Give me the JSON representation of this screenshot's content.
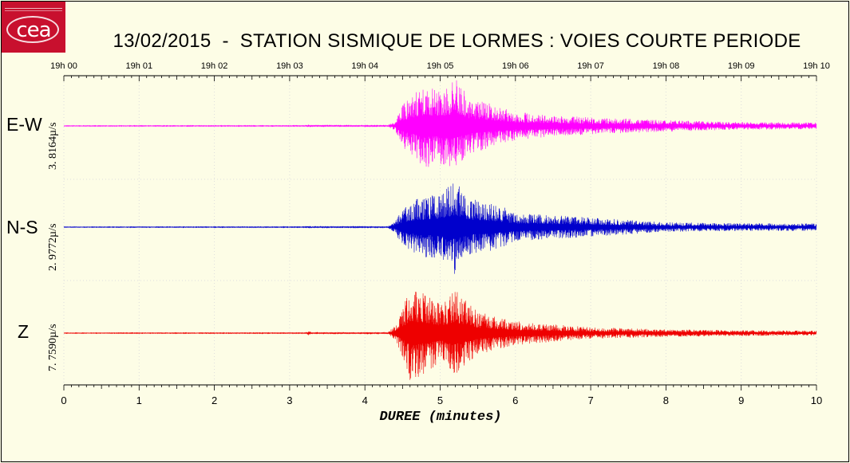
{
  "logo": {
    "text": "cea"
  },
  "title": "13/02/2015  -  STATION SISMIQUE DE LORMES : VOIES COURTE PERIODE",
  "chart_data": {
    "type": "line",
    "xlabel": "DUREE (minutes)",
    "xlim": [
      0,
      10
    ],
    "bottom_ticks": [
      "0",
      "1",
      "2",
      "3",
      "4",
      "5",
      "6",
      "7",
      "8",
      "9",
      "10"
    ],
    "top_ticks": [
      "19h 00",
      "19h 01",
      "19h 02",
      "19h 03",
      "19h 04",
      "19h 05",
      "19h 06",
      "19h 07",
      "19h 08",
      "19h 09",
      "19h 10"
    ],
    "series": [
      {
        "name": "E-W",
        "scale": "3. 8164µ/s",
        "color": "#ff00ff",
        "envelope": [
          [
            0,
            0.006
          ],
          [
            3.2,
            0.008
          ],
          [
            3.25,
            0.04
          ],
          [
            3.3,
            0.012
          ],
          [
            4.3,
            0.012
          ],
          [
            4.4,
            0.1
          ],
          [
            4.5,
            0.45
          ],
          [
            4.6,
            0.6
          ],
          [
            4.8,
            0.9
          ],
          [
            5.0,
            0.8
          ],
          [
            5.2,
            1.0
          ],
          [
            5.4,
            0.6
          ],
          [
            5.6,
            0.5
          ],
          [
            6.0,
            0.3
          ],
          [
            6.5,
            0.22
          ],
          [
            7.0,
            0.18
          ],
          [
            8.0,
            0.12
          ],
          [
            9.0,
            0.08
          ],
          [
            10.0,
            0.07
          ]
        ]
      },
      {
        "name": "N-S",
        "scale": "2. 9772µ/s",
        "color": "#0000cc",
        "envelope": [
          [
            0,
            0.006
          ],
          [
            3.2,
            0.008
          ],
          [
            3.25,
            0.03
          ],
          [
            3.3,
            0.012
          ],
          [
            4.3,
            0.012
          ],
          [
            4.4,
            0.12
          ],
          [
            4.5,
            0.4
          ],
          [
            4.7,
            0.6
          ],
          [
            5.0,
            0.7
          ],
          [
            5.2,
            1.0
          ],
          [
            5.4,
            0.6
          ],
          [
            5.8,
            0.45
          ],
          [
            6.0,
            0.3
          ],
          [
            6.5,
            0.25
          ],
          [
            7.0,
            0.2
          ],
          [
            8.0,
            0.1
          ],
          [
            9.0,
            0.08
          ],
          [
            10.0,
            0.08
          ]
        ]
      },
      {
        "name": "Z",
        "scale": "7. 7590µ/s",
        "color": "#ee0000",
        "envelope": [
          [
            0,
            0.006
          ],
          [
            3.2,
            0.008
          ],
          [
            3.25,
            0.05
          ],
          [
            3.3,
            0.012
          ],
          [
            4.3,
            0.012
          ],
          [
            4.4,
            0.15
          ],
          [
            4.5,
            0.5
          ],
          [
            4.6,
            1.0
          ],
          [
            4.8,
            0.85
          ],
          [
            5.0,
            0.6
          ],
          [
            5.2,
            0.9
          ],
          [
            5.5,
            0.45
          ],
          [
            6.0,
            0.25
          ],
          [
            7.0,
            0.12
          ],
          [
            8.0,
            0.08
          ],
          [
            9.0,
            0.06
          ],
          [
            10.0,
            0.05
          ]
        ]
      }
    ]
  }
}
